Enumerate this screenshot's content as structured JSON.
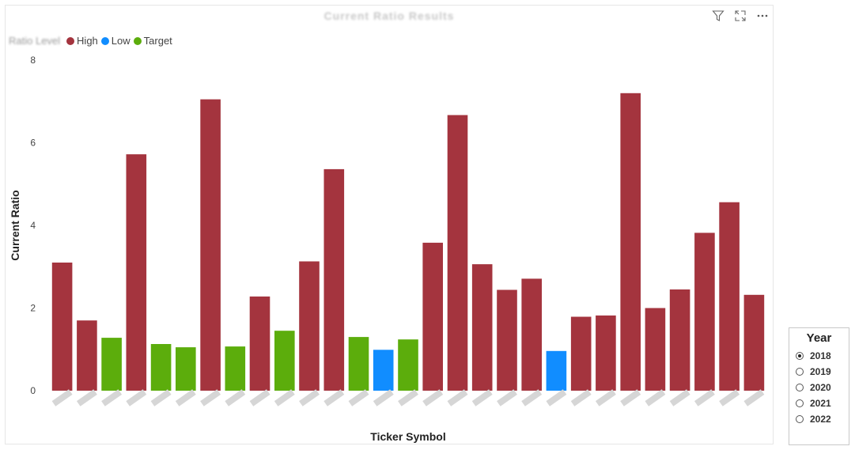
{
  "visual": {
    "title": "Current Ratio Results",
    "legend": {
      "title": "Ratio Level",
      "items": [
        {
          "label": "High",
          "color": "#a4343e"
        },
        {
          "label": "Low",
          "color": "#118dff"
        },
        {
          "label": "Target",
          "color": "#5cad0c"
        }
      ]
    },
    "header_icons": [
      "filter-icon",
      "focus-mode-icon",
      "more-options-icon"
    ]
  },
  "chart_data": {
    "type": "bar",
    "xlabel": "Ticker Symbol",
    "ylabel": "Current Ratio",
    "ylim": [
      0,
      8
    ],
    "yticks": [
      0,
      2,
      4,
      6,
      8
    ],
    "grid": false,
    "legend_position": "top-left",
    "category_labels_obscured": true,
    "values": [
      3.1,
      1.7,
      1.28,
      5.72,
      1.13,
      1.05,
      7.05,
      1.07,
      2.28,
      1.45,
      3.13,
      5.36,
      1.3,
      0.99,
      1.24,
      3.58,
      6.67,
      3.06,
      2.44,
      2.71,
      0.96,
      1.79,
      1.82,
      7.2,
      2.0,
      2.45,
      3.82,
      4.56,
      2.32
    ],
    "levels": [
      "High",
      "High",
      "Target",
      "High",
      "Target",
      "Target",
      "High",
      "Target",
      "High",
      "Target",
      "High",
      "High",
      "Target",
      "Low",
      "Target",
      "High",
      "High",
      "High",
      "High",
      "High",
      "Low",
      "High",
      "High",
      "High",
      "High",
      "High",
      "High",
      "High",
      "High"
    ]
  },
  "slicer": {
    "title": "Year",
    "options": [
      "2018",
      "2019",
      "2020",
      "2021",
      "2022"
    ],
    "selected": "2018"
  }
}
